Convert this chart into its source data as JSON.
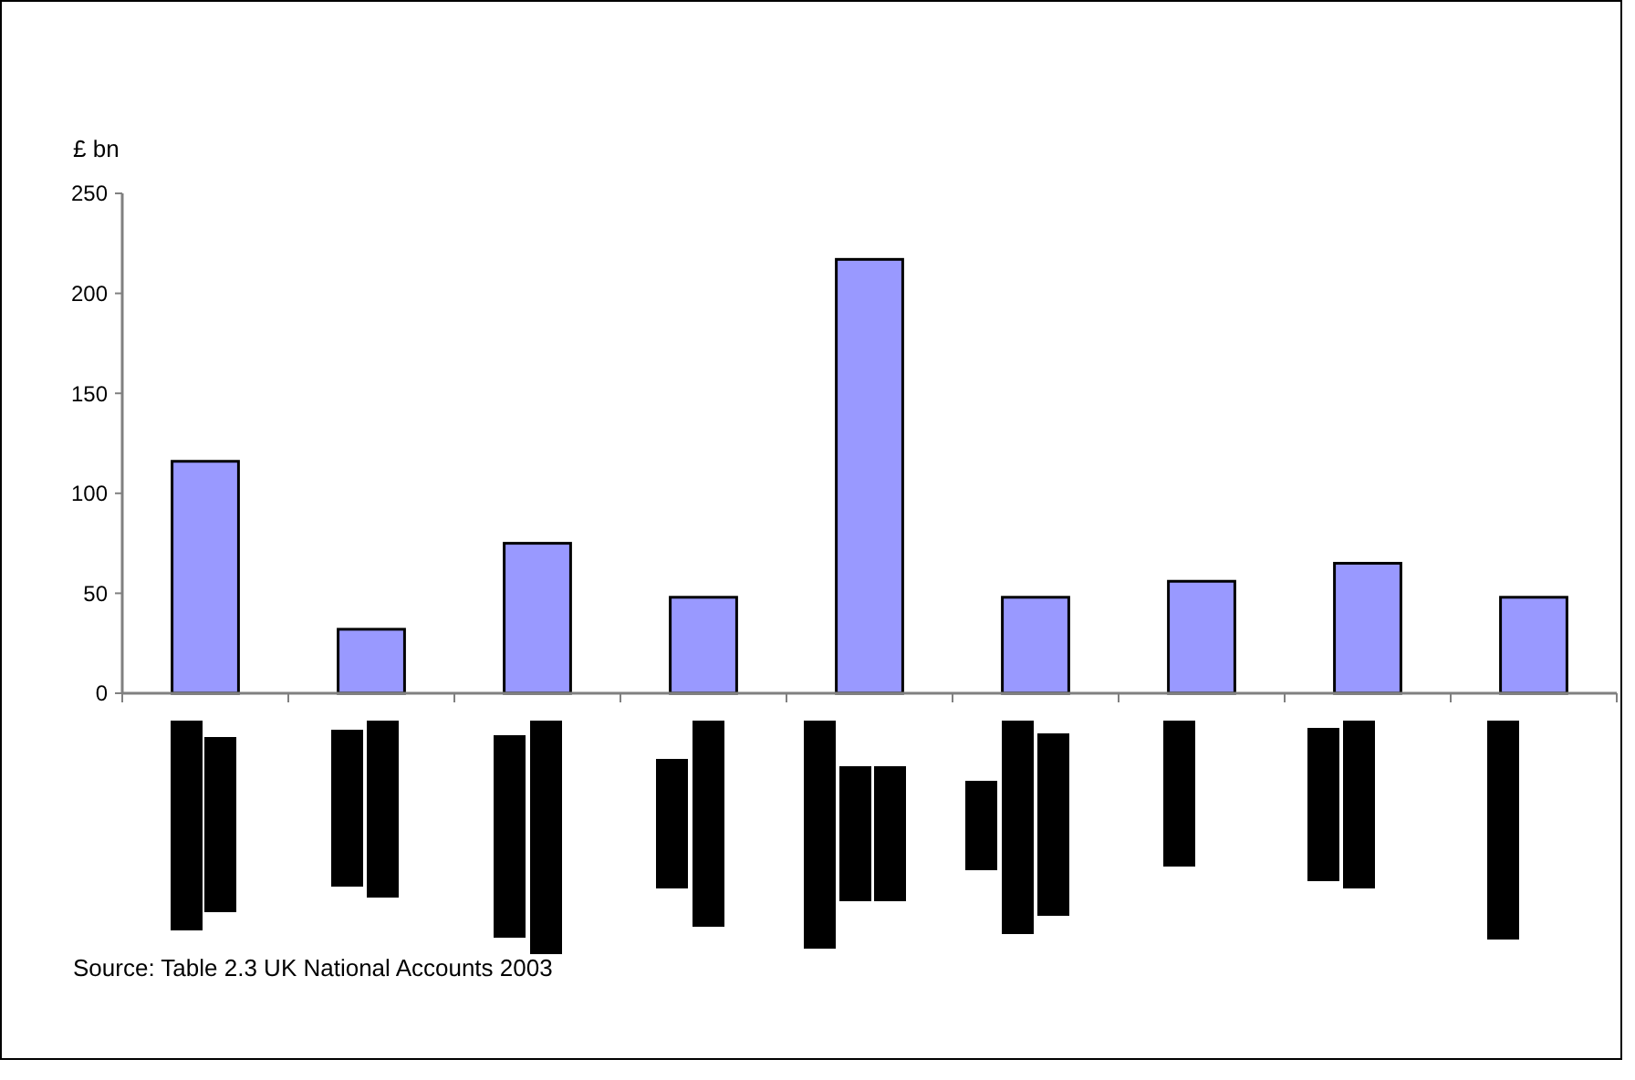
{
  "chart_data": {
    "type": "bar",
    "ylabel": "£ bn",
    "categories": [
      null,
      null,
      null,
      null,
      null,
      null,
      null,
      null,
      null
    ],
    "values": [
      116,
      32,
      75,
      48,
      217,
      48,
      56,
      65,
      48
    ],
    "color": "#9999ff",
    "ylim": [
      0,
      250
    ],
    "yticks": [
      0,
      50,
      100,
      150,
      200,
      250
    ],
    "grid": false,
    "annotations": [
      "Source: Table 2.3 UK National Accounts 2003"
    ]
  }
}
